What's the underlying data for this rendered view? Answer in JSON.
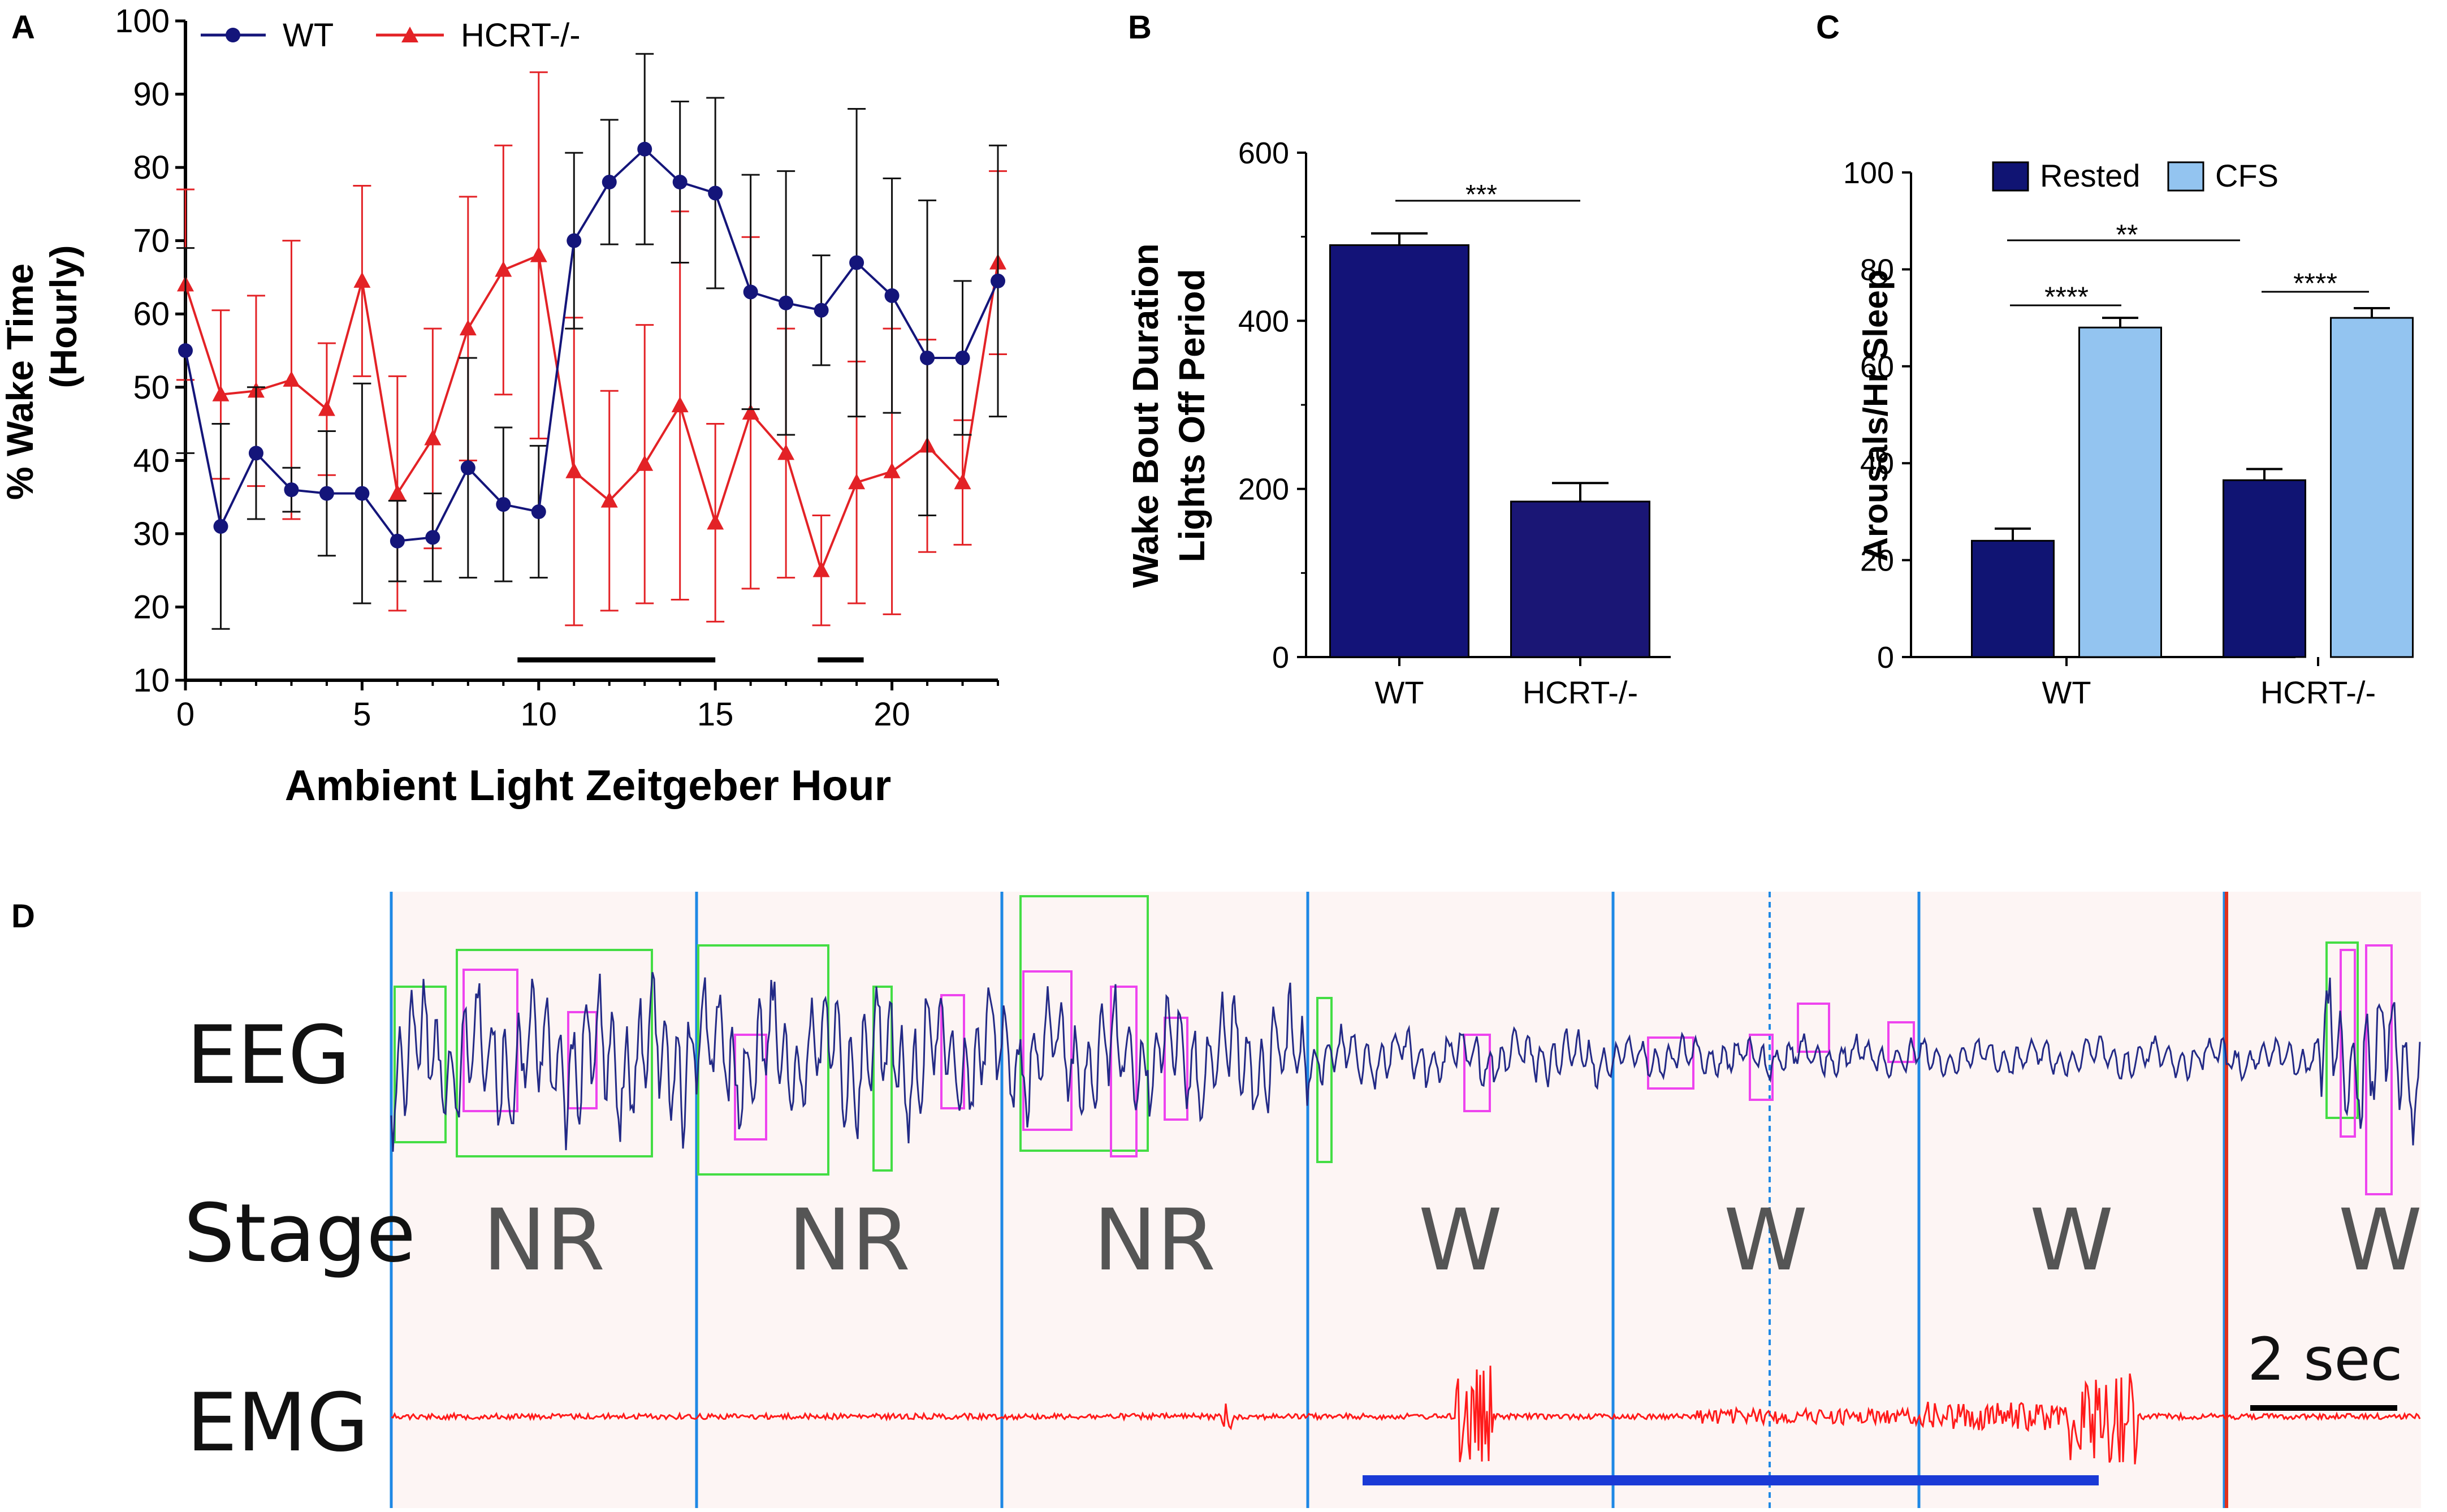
{
  "panel_letters": {
    "a": "A",
    "b": "B",
    "c": "C",
    "d": "D"
  },
  "colors": {
    "wt": "#14157a",
    "hcrt": "#e32226",
    "rested": "#101473",
    "cfs": "#93c4f0",
    "eeg": "#232a86",
    "emg": "#ff1a1a",
    "epoch": "#1e88e5",
    "red_cursor": "#e0321e",
    "green_box": "#44dd44",
    "magenta_box": "#ee44ee",
    "trace_bg": "#fdf5f4",
    "blue_bar": "#1a3ad6"
  },
  "chart_data": [
    {
      "type": "line",
      "panel": "A",
      "xlabel": "Ambient Light Zeitgeber Hour",
      "ylabel": "% Wake Time",
      "ylabel2": "(Hourly)",
      "xlim": [
        0,
        23
      ],
      "ylim": [
        10,
        100
      ],
      "xticks": [
        "0",
        "5",
        "10",
        "15",
        "20"
      ],
      "yticks": [
        "10",
        "20",
        "30",
        "40",
        "50",
        "60",
        "70",
        "80",
        "90",
        "100"
      ],
      "x": [
        0,
        1,
        2,
        3,
        4,
        5,
        6,
        7,
        8,
        9,
        10,
        11,
        12,
        13,
        14,
        15,
        16,
        17,
        18,
        19,
        20,
        21,
        22,
        23
      ],
      "series": [
        {
          "name": "WT",
          "marker": "circle",
          "values": [
            55,
            31,
            41,
            36,
            35.5,
            35.5,
            29,
            29.5,
            39,
            34,
            33,
            70,
            78,
            82.5,
            78,
            76.5,
            63,
            61.5,
            60.5,
            67,
            62.5,
            54,
            54,
            64.5
          ],
          "errors": [
            14,
            14,
            9,
            3,
            8.5,
            15,
            5.5,
            6,
            15,
            10.5,
            9,
            12,
            8.5,
            13,
            11,
            13,
            16,
            18,
            7.5,
            21,
            16,
            21.5,
            10.5,
            18.5
          ]
        },
        {
          "name": "HCRT-/-",
          "marker": "triangle",
          "values": [
            64,
            49,
            49.5,
            51,
            47,
            64.5,
            35.5,
            43,
            58,
            66,
            68,
            38.5,
            34.5,
            39.5,
            47.5,
            31.5,
            46.5,
            41,
            25,
            37,
            38.5,
            42,
            37,
            67
          ],
          "errors": [
            13,
            11.5,
            13,
            19,
            9,
            13,
            16,
            15,
            18,
            17,
            25,
            21,
            15,
            19,
            26.5,
            13.5,
            24,
            17,
            7.5,
            16.5,
            19.5,
            14.5,
            8.5,
            12.5
          ]
        }
      ],
      "annotation_bars": [
        [
          9.4,
          15
        ],
        [
          17.9,
          19.2
        ]
      ]
    },
    {
      "type": "bar",
      "panel": "B",
      "ylabel": "Wake Bout Duration",
      "ylabel2": "Lights Off Period",
      "categories": [
        "WT",
        "HCRT-/-"
      ],
      "values": [
        490,
        185
      ],
      "errors": [
        14,
        22
      ],
      "ylim": [
        0,
        600
      ],
      "yticks": [
        "0",
        "200",
        "400",
        "600"
      ],
      "significance": [
        {
          "label": "***",
          "between": [
            "WT",
            "HCRT-/-"
          ]
        }
      ]
    },
    {
      "type": "bar",
      "panel": "C",
      "ylabel": "Arousals/Hr Sleep",
      "categories": [
        "WT",
        "HCRT-/-"
      ],
      "series": [
        {
          "name": "Rested",
          "values": [
            24,
            36.5
          ],
          "errors": [
            2.5,
            2.3
          ]
        },
        {
          "name": "CFS",
          "values": [
            68,
            70
          ],
          "errors": [
            2,
            2
          ]
        }
      ],
      "ylim": [
        0,
        100
      ],
      "yticks": [
        "0",
        "20",
        "40",
        "60",
        "80",
        "100"
      ],
      "significance": [
        {
          "label": "****",
          "between": [
            "WT Rested",
            "WT CFS"
          ]
        },
        {
          "label": "**",
          "between": [
            "WT Rested",
            "HCRT-/- Rested"
          ]
        },
        {
          "label": "****",
          "between": [
            "HCRT-/- Rested",
            "HCRT-/- CFS"
          ]
        }
      ]
    }
  ],
  "traces": {
    "eeg_label": "EEG",
    "stage_label": "Stage",
    "emg_label": "EMG",
    "stages": [
      "NR",
      "NR",
      "NR",
      "W",
      "W",
      "W",
      "W"
    ],
    "scale_label": "2 sec"
  }
}
